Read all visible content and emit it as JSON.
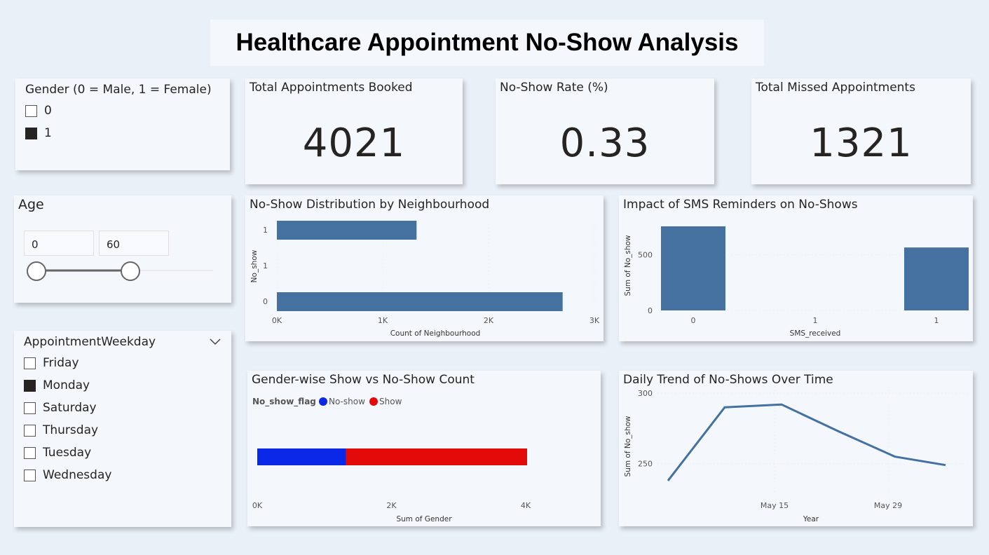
{
  "title": "Healthcare Appointment No-Show Analysis",
  "gender_slicer": {
    "title": "Gender (0 = Male, 1 = Female)",
    "items": [
      {
        "label": "0",
        "checked": false
      },
      {
        "label": "1",
        "checked": true
      }
    ]
  },
  "age_slicer": {
    "title": "Age",
    "min": "0",
    "max": "60"
  },
  "weekday_slicer": {
    "title": "AppointmentWeekday",
    "items": [
      {
        "label": "Friday",
        "checked": false
      },
      {
        "label": "Monday",
        "checked": true
      },
      {
        "label": "Saturday",
        "checked": false
      },
      {
        "label": "Thursday",
        "checked": false
      },
      {
        "label": "Tuesday",
        "checked": false
      },
      {
        "label": "Wednesday",
        "checked": false
      }
    ]
  },
  "kpis": [
    {
      "label": "Total Appointments Booked",
      "value": "4021"
    },
    {
      "label": "No-Show Rate (%)",
      "value": "0.33"
    },
    {
      "label": "Total Missed Appointments",
      "value": "1321"
    }
  ],
  "colors": {
    "bar": "#44719f",
    "no_show": "#0b27e7",
    "show": "#e30a0a"
  },
  "chart_data": [
    {
      "type": "bar",
      "orientation": "horizontal",
      "title": "No-Show Distribution by Neighbourhood",
      "xlabel": "Count of Neighbourhood",
      "ylabel": "No_show",
      "categories": [
        "1",
        "1",
        "0"
      ],
      "values": [
        1320,
        0,
        2700
      ],
      "xlim": [
        0,
        3000
      ],
      "xticks": [
        "0K",
        "1K",
        "2K",
        "3K"
      ]
    },
    {
      "type": "bar",
      "title": "Impact of SMS Reminders on No-Shows",
      "xlabel": "SMS_received",
      "ylabel": "Sum of No_show",
      "categories": [
        "0",
        "1",
        "1"
      ],
      "values": [
        755,
        0,
        565
      ],
      "ylim": [
        0,
        780
      ],
      "yticks": [
        "0",
        "500"
      ]
    },
    {
      "type": "bar",
      "orientation": "horizontal",
      "stacked": true,
      "title": "Gender-wise Show vs No-Show Count",
      "legend_title": "No_show_flag",
      "xlabel": "Sum of Gender",
      "xlim": [
        0,
        4200
      ],
      "xticks": [
        "0K",
        "2K",
        "4K"
      ],
      "series": [
        {
          "name": "No-show",
          "values": [
            1321
          ]
        },
        {
          "name": "Show",
          "values": [
            2700
          ]
        }
      ]
    },
    {
      "type": "line",
      "title": "Daily Trend of No-Shows Over Time",
      "xlabel": "Year",
      "ylabel": "Sum of No_show",
      "x": [
        "May 1",
        "May 8",
        "May 15",
        "May 22",
        "May 29",
        "Jun 5"
      ],
      "values": [
        238,
        290,
        292,
        273,
        255,
        249
      ],
      "ylim": [
        230,
        305
      ],
      "yticks": [
        "250",
        "300"
      ],
      "xticks": [
        "May 15",
        "May 29"
      ]
    }
  ]
}
